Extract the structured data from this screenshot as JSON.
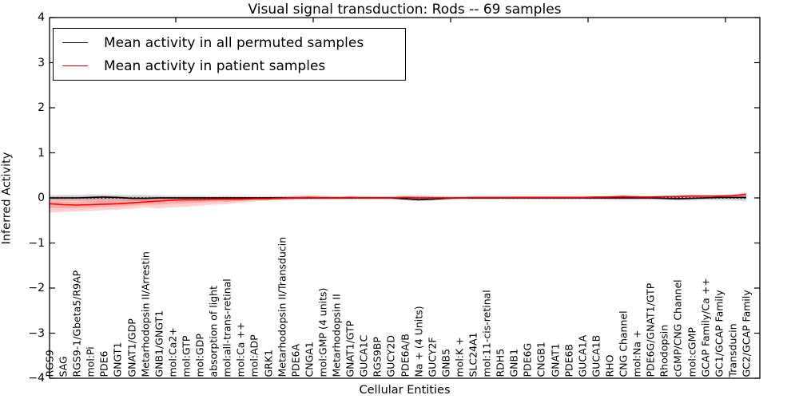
{
  "chart_data": {
    "type": "line",
    "title": "Visual signal transduction: Rods -- 69 samples",
    "xlabel": "Cellular Entities",
    "ylabel": "Inferred Activity",
    "ylim": [
      -4,
      4
    ],
    "grid": false,
    "legend_position": "upper left",
    "zero_line": {
      "y": 0,
      "style": "dotted",
      "color": "#000000"
    },
    "yticks": [
      {
        "label": "4",
        "value": 4
      },
      {
        "label": "3",
        "value": 3
      },
      {
        "label": "2",
        "value": 2
      },
      {
        "label": "1",
        "value": 1
      },
      {
        "label": "0",
        "value": 0
      },
      {
        "label": "−1",
        "value": -1
      },
      {
        "label": "−2",
        "value": -2
      },
      {
        "label": "−3",
        "value": -3
      },
      {
        "label": "−4",
        "value": -4
      }
    ],
    "categories": [
      "RGS9",
      "SAG",
      "RGS9-1/Gbeta5/R9AP",
      "mol:Pi",
      "PDE6",
      "GNGT1",
      "GNAT1/GDP",
      "Metarhodopsin II/Arrestin",
      "GNB1/GNGT1",
      "mol:Ca2+",
      "mol:GTP",
      "mol:GDP",
      "absorption of light",
      "mol:all-trans-retinal",
      "mol:Ca ++",
      "mol:ADP",
      "GRK1",
      "Metarhodopsin II/Transducin",
      "PDE6A",
      "CNGA1",
      "mol:GMP (4 units)",
      "Metarhodopsin II",
      "GNAT1/GTP",
      "GUCA1C",
      "RGS9BP",
      "GUCY2D",
      "PDE6A/B",
      "Na + (4 Units)",
      "GUCY2F",
      "GNB5",
      "mol:K +",
      "SLC24A1",
      "mol:11-cis-retinal",
      "RDH5",
      "GNB1",
      "PDE6G",
      "CNGB1",
      "GNAT1",
      "PDE6B",
      "GUCA1A",
      "GUCA1B",
      "RHO",
      "CNG Channel",
      "mol:Na +",
      "PDE6G/GNAT1/GTP",
      "Rhodopsin",
      "cGMP/CNG Channel",
      "mol:cGMP",
      "GCAP Family/Ca ++",
      "GC1/GCAP Family",
      "Transducin",
      "GC2/GCAP Family"
    ],
    "series": [
      {
        "key": "permuted",
        "name": "Mean activity in all permuted samples",
        "color": "#000000",
        "band_color": "#000000",
        "band_opacity": 0.13,
        "mean": [
          0,
          0,
          0,
          0.01,
          0.02,
          0.01,
          -0.01,
          -0.01,
          0,
          0,
          0,
          0,
          0,
          0,
          0,
          0,
          0,
          0,
          0,
          0,
          0,
          0,
          0,
          0,
          0,
          0,
          -0.02,
          -0.04,
          -0.03,
          -0.01,
          0,
          0,
          0,
          0,
          0,
          0,
          0,
          0,
          0,
          0,
          0,
          0,
          0,
          0,
          0,
          -0.01,
          -0.02,
          -0.01,
          0,
          0.01,
          0.01,
          0.01
        ],
        "upper": [
          0.06,
          0.07,
          0.07,
          0.08,
          0.08,
          0.07,
          0.07,
          0.07,
          0.06,
          0.05,
          0.05,
          0.05,
          0.04,
          0.05,
          0.04,
          0.04,
          0.04,
          0.04,
          0.04,
          0.04,
          0.04,
          0.04,
          0.04,
          0.04,
          0.04,
          0.04,
          0.04,
          0.04,
          0.04,
          0.04,
          0.04,
          0.04,
          0.04,
          0.04,
          0.04,
          0.04,
          0.04,
          0.04,
          0.04,
          0.04,
          0.04,
          0.04,
          0.04,
          0.04,
          0.04,
          0.04,
          0.05,
          0.05,
          0.05,
          0.05,
          0.06,
          0.07
        ],
        "lower": [
          -0.06,
          -0.07,
          -0.07,
          -0.08,
          -0.08,
          -0.07,
          -0.07,
          -0.07,
          -0.06,
          -0.05,
          -0.05,
          -0.05,
          -0.04,
          -0.05,
          -0.04,
          -0.04,
          -0.04,
          -0.04,
          -0.04,
          -0.04,
          -0.04,
          -0.04,
          -0.04,
          -0.04,
          -0.04,
          -0.04,
          -0.06,
          -0.07,
          -0.06,
          -0.05,
          -0.04,
          -0.04,
          -0.04,
          -0.04,
          -0.04,
          -0.04,
          -0.04,
          -0.04,
          -0.04,
          -0.04,
          -0.04,
          -0.05,
          -0.05,
          -0.05,
          -0.05,
          -0.05,
          -0.06,
          -0.06,
          -0.05,
          -0.06,
          -0.06,
          -0.08
        ]
      },
      {
        "key": "patient",
        "name": "Mean activity in patient samples",
        "color": "#ff0000",
        "band_color": "#ff0000",
        "band_opacity": 0.18,
        "mean": [
          -0.13,
          -0.15,
          -0.16,
          -0.15,
          -0.14,
          -0.13,
          -0.11,
          -0.09,
          -0.07,
          -0.05,
          -0.04,
          -0.04,
          -0.03,
          -0.03,
          -0.03,
          -0.02,
          -0.02,
          -0.01,
          0,
          0.01,
          0,
          0,
          0.01,
          0,
          0,
          0,
          0.01,
          0,
          0,
          0,
          0,
          0.01,
          0.01,
          0.01,
          0.01,
          0.01,
          0.01,
          0.01,
          0.01,
          0.01,
          0.02,
          0.02,
          0.03,
          0.02,
          0.02,
          0.03,
          0.03,
          0.04,
          0.04,
          0.04,
          0.05,
          0.08
        ],
        "upper": [
          0,
          -0.01,
          -0.01,
          0,
          0.01,
          0.01,
          0.01,
          0.01,
          0.01,
          0.02,
          0.02,
          0.02,
          0.02,
          0.02,
          0.02,
          0.02,
          0.02,
          0.03,
          0.05,
          0.06,
          0.05,
          0.03,
          0.04,
          0.04,
          0.03,
          0.03,
          0.05,
          0.06,
          0.04,
          0.03,
          0.02,
          0.02,
          0.02,
          0.02,
          0.03,
          0.03,
          0.03,
          0.03,
          0.03,
          0.03,
          0.03,
          0.05,
          0.07,
          0.05,
          0.04,
          0.04,
          0.06,
          0.07,
          0.06,
          0.06,
          0.07,
          0.13
        ],
        "lower": [
          -0.33,
          -0.31,
          -0.3,
          -0.29,
          -0.27,
          -0.26,
          -0.24,
          -0.21,
          -0.23,
          -0.21,
          -0.2,
          -0.17,
          -0.15,
          -0.14,
          -0.11,
          -0.08,
          -0.06,
          -0.05,
          -0.04,
          -0.03,
          -0.03,
          -0.03,
          -0.02,
          -0.02,
          -0.02,
          -0.02,
          -0.03,
          -0.03,
          -0.03,
          -0.02,
          -0.02,
          -0.02,
          -0.02,
          -0.01,
          -0.01,
          -0.01,
          -0.01,
          -0.01,
          -0.01,
          -0.01,
          -0.01,
          -0.02,
          -0.02,
          -0.02,
          -0.01,
          -0.01,
          0,
          0.01,
          0.01,
          0.01,
          0.02,
          0.03
        ]
      }
    ]
  }
}
